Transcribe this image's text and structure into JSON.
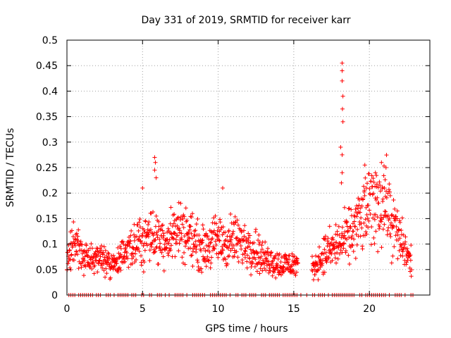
{
  "chart_data": {
    "type": "scatter",
    "title": "Day 331 of 2019, SRMTID for receiver karr",
    "xlabel": "GPS time / hours",
    "ylabel": "SRMTID / TECUs",
    "xlim": [
      0,
      24
    ],
    "ylim": [
      0,
      0.5
    ],
    "xticks": [
      0,
      5,
      10,
      15,
      20
    ],
    "yticks": [
      0,
      0.05,
      0.1,
      0.15,
      0.2,
      0.25,
      0.3,
      0.35,
      0.4,
      0.45,
      0.5
    ],
    "xtick_labels": [
      "0",
      "5",
      "10",
      "15",
      "20"
    ],
    "ytick_labels": [
      "0",
      "0.05",
      "0.1",
      "0.15",
      "0.2",
      "0.25",
      "0.3",
      "0.35",
      "0.4",
      "0.45",
      "0.5"
    ],
    "grid": true,
    "marker": "+",
    "color": "#ff0000",
    "envelope": {
      "description": "approximate local mean (hours, TECU) of the point cloud",
      "x": [
        0,
        0.5,
        1,
        1.5,
        2,
        2.5,
        3,
        3.5,
        4,
        4.5,
        5,
        5.5,
        6,
        6.5,
        7,
        7.5,
        8,
        8.5,
        9,
        9.5,
        10,
        10.5,
        11,
        11.5,
        12,
        12.5,
        13,
        13.5,
        14,
        14.5,
        15,
        15.3,
        16.2,
        16.5,
        17,
        17.5,
        18,
        18.5,
        19,
        19.5,
        20,
        20.5,
        21,
        21.5,
        22,
        22.5,
        22.8
      ],
      "y": [
        0.06,
        0.11,
        0.08,
        0.07,
        0.08,
        0.07,
        0.06,
        0.07,
        0.08,
        0.1,
        0.11,
        0.12,
        0.11,
        0.11,
        0.12,
        0.13,
        0.12,
        0.1,
        0.09,
        0.1,
        0.11,
        0.1,
        0.11,
        0.1,
        0.1,
        0.09,
        0.07,
        0.07,
        0.06,
        0.06,
        0.06,
        0.06,
        0.05,
        0.06,
        0.08,
        0.09,
        0.1,
        0.11,
        0.13,
        0.15,
        0.17,
        0.18,
        0.19,
        0.14,
        0.11,
        0.08,
        0.06
      ]
    },
    "notable_points": [
      {
        "x": 18.2,
        "y": 0.455
      },
      {
        "x": 18.2,
        "y": 0.44
      },
      {
        "x": 18.2,
        "y": 0.42
      },
      {
        "x": 18.25,
        "y": 0.39
      },
      {
        "x": 18.22,
        "y": 0.365
      },
      {
        "x": 18.25,
        "y": 0.34
      },
      {
        "x": 18.1,
        "y": 0.29
      },
      {
        "x": 18.2,
        "y": 0.275
      },
      {
        "x": 5.8,
        "y": 0.27
      },
      {
        "x": 5.85,
        "y": 0.26
      },
      {
        "x": 20.8,
        "y": 0.26
      },
      {
        "x": 19.7,
        "y": 0.255
      },
      {
        "x": 21.1,
        "y": 0.25
      },
      {
        "x": 5.8,
        "y": 0.245
      },
      {
        "x": 18.2,
        "y": 0.24
      },
      {
        "x": 20.4,
        "y": 0.24
      },
      {
        "x": 5.9,
        "y": 0.23
      },
      {
        "x": 18.15,
        "y": 0.22
      },
      {
        "x": 5.0,
        "y": 0.21
      },
      {
        "x": 10.3,
        "y": 0.21
      },
      {
        "x": 19.8,
        "y": 0.21
      },
      {
        "x": 21.0,
        "y": 0.21
      }
    ],
    "zero_band": "dense row of markers at y = 0 across 0–23 h, sparse near 15.3–16.2 h"
  }
}
